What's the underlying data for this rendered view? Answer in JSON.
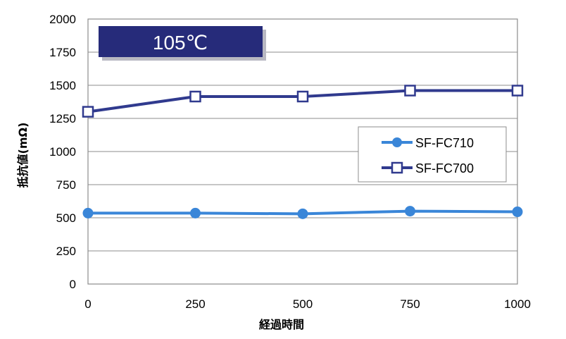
{
  "chart_data": {
    "type": "line",
    "title": "",
    "annotation": "105℃",
    "xlabel": "経過時間",
    "ylabel": "抵抗値(mΩ)",
    "xlim": [
      0,
      1000
    ],
    "ylim": [
      0,
      2000
    ],
    "x_ticks": [
      0,
      250,
      500,
      750,
      1000
    ],
    "y_ticks": [
      0,
      250,
      500,
      750,
      1000,
      1250,
      1500,
      1750,
      2000
    ],
    "grid": true,
    "legend_position": "right",
    "series": [
      {
        "name": "SF-FC710",
        "marker": "circle",
        "color": "#3a86d8",
        "x": [
          0,
          250,
          500,
          750,
          1000
        ],
        "y": [
          535,
          535,
          530,
          550,
          545
        ]
      },
      {
        "name": "SF-FC700",
        "marker": "square",
        "color": "#303a8e",
        "x": [
          0,
          250,
          500,
          750,
          1000
        ],
        "y": [
          1300,
          1415,
          1415,
          1460,
          1460
        ]
      }
    ]
  }
}
